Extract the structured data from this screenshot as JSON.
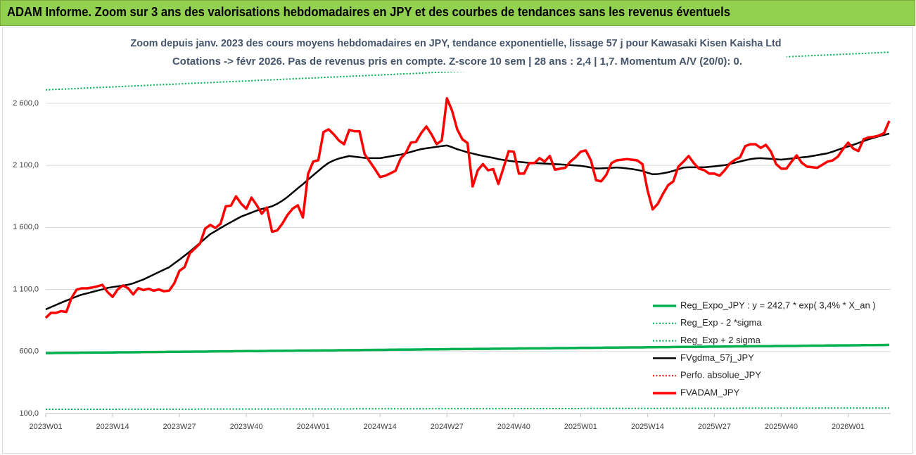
{
  "chart_data": {
    "type": "line",
    "title": "ADAM Informe. Zoom sur 3 ans des valorisations hebdomadaires en JPY et des courbes de tendances sans les revenus éventuels",
    "subtitle": [
      "Zoom depuis janv. 2023 des cours moyens hebdomadaires en JPY, tendance exponentielle, lissage 57 j pour Kawasaki Kisen Kaisha Ltd",
      "Cotations -> févr 2026.  Pas de revenus pris en compte. Z-score 10 sem | 28 ans : 2,4 | 1,7. Momentum A/V (20/0): 0."
    ],
    "categories": [
      "2023W01",
      null,
      null,
      null,
      null,
      null,
      null,
      null,
      null,
      null,
      null,
      null,
      null,
      "2023W14",
      null,
      null,
      null,
      null,
      null,
      null,
      null,
      null,
      null,
      null,
      null,
      null,
      "2023W27",
      null,
      null,
      null,
      null,
      null,
      null,
      null,
      null,
      null,
      null,
      null,
      null,
      "2023W40",
      null,
      null,
      null,
      null,
      null,
      null,
      null,
      null,
      null,
      null,
      null,
      null,
      "2024W01",
      null,
      null,
      null,
      null,
      null,
      null,
      null,
      null,
      null,
      null,
      null,
      null,
      "2024W14",
      null,
      null,
      null,
      null,
      null,
      null,
      null,
      null,
      null,
      null,
      null,
      null,
      "2024W27",
      null,
      null,
      null,
      null,
      null,
      null,
      null,
      null,
      null,
      null,
      null,
      null,
      "2024W40",
      null,
      null,
      null,
      null,
      null,
      null,
      null,
      null,
      null,
      null,
      null,
      null,
      "2025W01",
      null,
      null,
      null,
      null,
      null,
      null,
      null,
      null,
      null,
      null,
      null,
      null,
      "2025W14",
      null,
      null,
      null,
      null,
      null,
      null,
      null,
      null,
      null,
      null,
      null,
      null,
      "2025W27",
      null,
      null,
      null,
      null,
      null,
      null,
      null,
      null,
      null,
      null,
      null,
      null,
      "2025W40",
      null,
      null,
      null,
      null,
      null,
      null,
      null,
      null,
      null,
      null,
      null,
      null,
      "2026W01",
      null,
      null,
      null,
      null,
      null,
      null,
      null,
      null
    ],
    "ylim": [
      100,
      3200
    ],
    "yticks": [
      {
        "value": 100,
        "label": "100,0"
      },
      {
        "value": 600,
        "label": "600,0"
      },
      {
        "value": 1100,
        "label": "1 100,0"
      },
      {
        "value": 1600,
        "label": "1 600,0"
      },
      {
        "value": 2100,
        "label": "2 100,0"
      },
      {
        "value": 2600,
        "label": "2 600,0"
      }
    ],
    "grid": true,
    "legend": "right",
    "series": [
      {
        "name": "Reg_Expo_JPY : y = 242,7 * exp( 3,4% *  X_an )",
        "color": "#00b050",
        "style": "bold",
        "values": [
          587,
          587,
          588,
          588,
          589,
          589,
          589,
          590,
          590,
          591,
          591,
          591,
          592,
          592,
          593,
          593,
          593,
          594,
          594,
          595,
          595,
          595,
          596,
          596,
          597,
          597,
          597,
          598,
          598,
          599,
          599,
          599,
          600,
          600,
          601,
          601,
          601,
          602,
          602,
          603,
          603,
          603,
          604,
          604,
          605,
          605,
          605,
          606,
          606,
          607,
          607,
          607,
          608,
          608,
          609,
          609,
          609,
          610,
          610,
          611,
          611,
          611,
          612,
          612,
          613,
          613,
          613,
          614,
          614,
          615,
          615,
          615,
          616,
          616,
          617,
          617,
          617,
          618,
          618,
          619,
          619,
          619,
          620,
          620,
          621,
          621,
          621,
          622,
          622,
          623,
          623,
          623,
          624,
          624,
          625,
          625,
          625,
          626,
          626,
          627,
          627,
          627,
          628,
          628,
          629,
          629,
          629,
          630,
          630,
          631,
          631,
          631,
          632,
          632,
          633,
          633,
          633,
          634,
          634,
          635,
          635,
          635,
          636,
          636,
          637,
          637,
          637,
          638,
          638,
          639,
          639,
          639,
          640,
          640,
          641,
          641,
          641,
          642,
          642,
          643,
          643,
          643,
          644,
          644,
          645,
          645,
          645,
          646,
          646,
          647,
          647,
          647,
          648,
          648,
          649,
          649,
          649,
          650,
          650,
          651,
          651,
          651,
          652,
          652,
          653
        ]
      },
      {
        "name": "Reg_Exp - 2 *sigma",
        "color": "#00b050",
        "style": "dotted",
        "values": [
          134,
          134,
          134,
          134,
          134,
          134,
          134,
          134,
          134,
          134,
          134,
          134,
          134,
          134,
          134,
          135,
          135,
          135,
          135,
          135,
          135,
          135,
          135,
          135,
          135,
          135,
          135,
          135,
          135,
          135,
          136,
          136,
          136,
          136,
          136,
          136,
          136,
          136,
          136,
          136,
          136,
          136,
          136,
          136,
          136,
          137,
          137,
          137,
          137,
          137,
          137,
          137,
          137,
          137,
          137,
          137,
          137,
          137,
          137,
          137,
          138,
          138,
          138,
          138,
          138,
          138,
          138,
          138,
          138,
          138,
          138,
          138,
          138,
          138,
          138,
          139,
          139,
          139,
          139,
          139,
          139,
          139,
          139,
          139,
          139,
          139,
          139,
          139,
          139,
          139,
          140,
          140,
          140,
          140,
          140,
          140,
          140,
          140,
          140,
          140,
          140,
          140,
          140,
          140,
          140,
          141,
          141,
          141,
          141,
          141,
          141,
          141,
          141,
          141,
          141,
          141,
          141,
          141,
          141,
          141,
          142,
          142,
          142,
          142,
          142,
          142,
          142,
          142,
          142,
          142,
          142,
          142,
          142,
          142,
          142,
          143,
          143,
          143,
          143,
          143,
          143,
          143,
          143,
          143,
          143,
          143,
          143,
          143,
          143,
          143,
          144,
          144,
          144,
          144,
          144,
          144,
          144,
          144,
          144,
          144,
          144,
          144,
          144,
          144,
          144
        ]
      },
      {
        "name": "Reg_Exp + 2 sigma",
        "color": "#00b050",
        "style": "dotted",
        "values": [
          2708,
          2710,
          2712,
          2714,
          2715,
          2717,
          2719,
          2721,
          2723,
          2725,
          2727,
          2728,
          2730,
          2732,
          2734,
          2736,
          2738,
          2739,
          2741,
          2743,
          2745,
          2747,
          2749,
          2751,
          2752,
          2754,
          2756,
          2758,
          2760,
          2762,
          2764,
          2765,
          2767,
          2769,
          2771,
          2773,
          2775,
          2776,
          2778,
          2780,
          2782,
          2784,
          2786,
          2788,
          2789,
          2791,
          2793,
          2795,
          2797,
          2799,
          2801,
          2802,
          2804,
          2806,
          2808,
          2810,
          2812,
          2813,
          2815,
          2817,
          2819,
          2821,
          2823,
          2825,
          2826,
          2828,
          2830,
          2832,
          2834,
          2836,
          2838,
          2839,
          2841,
          2843,
          2845,
          2847,
          2849,
          2850,
          2852,
          2854,
          2856,
          2858,
          2860,
          2862,
          2863,
          2865,
          2867,
          2869,
          2871,
          2873,
          2875,
          2876,
          2878,
          2880,
          2882,
          2884,
          2886,
          2887,
          2889,
          2891,
          2893,
          2895,
          2897,
          2899,
          2900,
          2902,
          2904,
          2906,
          2908,
          2910,
          2912,
          2913,
          2915,
          2917,
          2919,
          2921,
          2923,
          2924,
          2926,
          2928,
          2930,
          2932,
          2934,
          2936,
          2937,
          2939,
          2941,
          2943,
          2945,
          2947,
          2949,
          2950,
          2952,
          2954,
          2956,
          2958,
          2960,
          2961,
          2963,
          2965,
          2967,
          2969,
          2971,
          2973,
          2974,
          2976,
          2978,
          2980,
          2982,
          2984,
          2986,
          2987,
          2989,
          2991,
          2993,
          2995,
          2997,
          2998,
          3000,
          3002,
          3004,
          3006,
          3008,
          3010,
          3011
        ]
      },
      {
        "name": "FVgdma_57j_JPY",
        "color": "#000000",
        "style": "solid",
        "values": [
          939,
          957,
          975,
          993,
          1010,
          1026,
          1043,
          1058,
          1068,
          1079,
          1090,
          1100,
          1112,
          1119,
          1125,
          1131,
          1138,
          1149,
          1165,
          1180,
          1200,
          1220,
          1240,
          1260,
          1279,
          1310,
          1340,
          1372,
          1404,
          1440,
          1475,
          1510,
          1546,
          1570,
          1595,
          1619,
          1642,
          1665,
          1687,
          1703,
          1719,
          1735,
          1748,
          1758,
          1770,
          1790,
          1815,
          1845,
          1880,
          1915,
          1948,
          1985,
          2020,
          2055,
          2090,
          2120,
          2140,
          2155,
          2165,
          2175,
          2170,
          2165,
          2160,
          2158,
          2158,
          2158,
          2165,
          2172,
          2180,
          2186,
          2197,
          2208,
          2220,
          2231,
          2237,
          2243,
          2249,
          2255,
          2260,
          2246,
          2230,
          2218,
          2205,
          2195,
          2185,
          2176,
          2168,
          2160,
          2150,
          2143,
          2137,
          2132,
          2128,
          2124,
          2120,
          2118,
          2116,
          2114,
          2112,
          2110,
          2108,
          2105,
          2102,
          2099,
          2096,
          2090,
          2082,
          2075,
          2076,
          2078,
          2080,
          2083,
          2080,
          2075,
          2070,
          2063,
          2055,
          2040,
          2028,
          2030,
          2036,
          2044,
          2055,
          2068,
          2082,
          2084,
          2084,
          2084,
          2084,
          2088,
          2092,
          2097,
          2101,
          2111,
          2121,
          2131,
          2141,
          2150,
          2156,
          2158,
          2155,
          2152,
          2149,
          2146,
          2150,
          2155,
          2159,
          2164,
          2168,
          2175,
          2182,
          2190,
          2197,
          2210,
          2225,
          2240,
          2252,
          2265,
          2280,
          2295,
          2310,
          2322,
          2334,
          2345,
          2356
        ]
      },
      {
        "name": "Perfo. absolue_JPY",
        "color": "#ff0000",
        "style": "dotted",
        "values": [
          null,
          null,
          null,
          null,
          null,
          null,
          null,
          null,
          null,
          null,
          null,
          null,
          null,
          null,
          null,
          null,
          null,
          null,
          null,
          null,
          null,
          null,
          null,
          null,
          null,
          null,
          null,
          null,
          null,
          null,
          null,
          null,
          null,
          null,
          null,
          null,
          null,
          null,
          null,
          null,
          null,
          null,
          null,
          null,
          null,
          null,
          null,
          null,
          null,
          null,
          null,
          null,
          null,
          null,
          null,
          null,
          null,
          null,
          null,
          null,
          null,
          null,
          null,
          null,
          null,
          null,
          null,
          null,
          null,
          null,
          null,
          null,
          null,
          null,
          null,
          null,
          null,
          null,
          null,
          null,
          null,
          null,
          null,
          null,
          null,
          null,
          null,
          null,
          null,
          null,
          null,
          null,
          null,
          null,
          null,
          null,
          null,
          null,
          null,
          null,
          null,
          null,
          null,
          null,
          null,
          null,
          null,
          null,
          null,
          null,
          null,
          null,
          null,
          null,
          null,
          null,
          null,
          null,
          null,
          null,
          null,
          null,
          null,
          null,
          null,
          null,
          null,
          null,
          null,
          null,
          null,
          null,
          null,
          null,
          null,
          null,
          null,
          null,
          null,
          null,
          null,
          null,
          null,
          null,
          null,
          null,
          null,
          null,
          null,
          null,
          null,
          null,
          null,
          null,
          null,
          null,
          null,
          null,
          null,
          null,
          null,
          null,
          null,
          null,
          null
        ]
      },
      {
        "name": "FVADAM_JPY",
        "color": "#ff0000",
        "style": "bold",
        "values": [
          871,
          911,
          911,
          925,
          918,
          1030,
          1098,
          1109,
          1109,
          1115,
          1125,
          1137,
          1080,
          1040,
          1100,
          1132,
          1110,
          1060,
          1110,
          1095,
          1105,
          1090,
          1100,
          1085,
          1090,
          1150,
          1250,
          1280,
          1390,
          1430,
          1470,
          1590,
          1620,
          1595,
          1630,
          1770,
          1775,
          1850,
          1790,
          1750,
          1840,
          1780,
          1710,
          1760,
          1565,
          1575,
          1630,
          1700,
          1750,
          1778,
          1680,
          2030,
          2130,
          2141,
          2368,
          2390,
          2350,
          2300,
          2270,
          2385,
          2375,
          2375,
          2190,
          2130,
          2070,
          2005,
          2016,
          2035,
          2056,
          2155,
          2200,
          2283,
          2290,
          2360,
          2413,
          2350,
          2271,
          2300,
          2640,
          2540,
          2390,
          2310,
          2280,
          1930,
          2060,
          2110,
          2060,
          2070,
          1950,
          2080,
          2214,
          2210,
          2033,
          2033,
          2118,
          2118,
          2158,
          2130,
          2175,
          2065,
          2073,
          2080,
          2130,
          2165,
          2210,
          2220,
          2140,
          1980,
          1971,
          2025,
          2118,
          2140,
          2145,
          2150,
          2145,
          2140,
          2110,
          1900,
          1745,
          1790,
          1870,
          1940,
          1970,
          2090,
          2130,
          2175,
          2118,
          2073,
          2061,
          2033,
          2033,
          2016,
          2060,
          2115,
          2145,
          2165,
          2255,
          2270,
          2270,
          2240,
          2265,
          2210,
          2110,
          2073,
          2073,
          2130,
          2180,
          2120,
          2090,
          2085,
          2080,
          2105,
          2130,
          2140,
          2170,
          2231,
          2283,
          2235,
          2215,
          2310,
          2325,
          2330,
          2340,
          2360,
          2458
        ]
      }
    ]
  }
}
